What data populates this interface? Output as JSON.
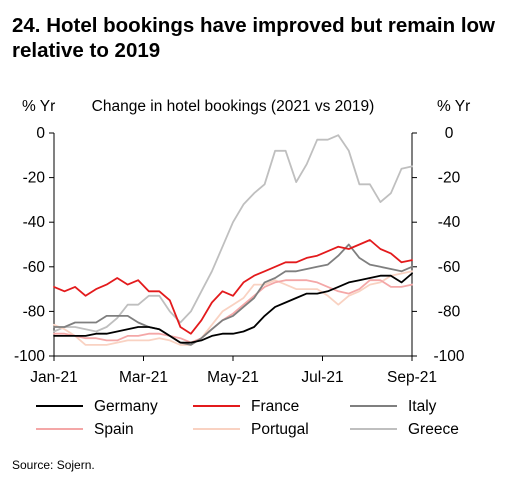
{
  "heading": "24. Hotel bookings have improved but remain low relative to 2019",
  "source": "Source: Sojern.",
  "colors": {
    "Germany": "#000000",
    "France": "#e31a1c",
    "Italy": "#7f7f7f",
    "Spain": "#f4a7a7",
    "Portugal": "#f9d2c2",
    "Greece": "#bfbfbf"
  },
  "chart_data": {
    "type": "line",
    "title": "Change in hotel bookings (2021 vs 2019)",
    "ylabel_left": "% Yr",
    "ylabel_right": "% Yr",
    "ylim": [
      -100,
      0
    ],
    "yticks": [
      0,
      -20,
      -40,
      -60,
      -80,
      -100
    ],
    "xlim": [
      0,
      34
    ],
    "xticks": [
      {
        "x": 0,
        "label": "Jan-21"
      },
      {
        "x": 8.5,
        "label": "Mar-21"
      },
      {
        "x": 17,
        "label": "May-21"
      },
      {
        "x": 25.5,
        "label": "Jul-21"
      },
      {
        "x": 34,
        "label": "Sep-21"
      }
    ],
    "x_unit": "week",
    "legend_position": "bottom",
    "series": [
      {
        "name": "Germany",
        "x": [
          0,
          1,
          2,
          3,
          4,
          5,
          6,
          7,
          8,
          9,
          10,
          11,
          12,
          13,
          14,
          15,
          16,
          17,
          18,
          19,
          20,
          21,
          22,
          23,
          24,
          25,
          26,
          27,
          28,
          29,
          30,
          31,
          32,
          33,
          34
        ],
        "values": [
          -91,
          -91,
          -91,
          -91,
          -90,
          -90,
          -89,
          -88,
          -87,
          -87,
          -88,
          -91,
          -94,
          -94,
          -93,
          -91,
          -90,
          -90,
          -89,
          -87,
          -82,
          -78,
          -76,
          -74,
          -72,
          -72,
          -71,
          -69,
          -67,
          -66,
          -65,
          -64,
          -64,
          -67,
          -63
        ]
      },
      {
        "name": "France",
        "x": [
          0,
          1,
          2,
          3,
          4,
          5,
          6,
          7,
          8,
          9,
          10,
          11,
          12,
          13,
          14,
          15,
          16,
          17,
          18,
          19,
          20,
          21,
          22,
          23,
          24,
          25,
          26,
          27,
          28,
          29,
          30,
          31,
          32,
          33,
          34
        ],
        "values": [
          -69,
          -71,
          -69,
          -73,
          -70,
          -68,
          -65,
          -68,
          -66,
          -71,
          -71,
          -75,
          -87,
          -90,
          -84,
          -76,
          -71,
          -73,
          -67,
          -64,
          -62,
          -60,
          -58,
          -58,
          -56,
          -55,
          -53,
          -51,
          -52,
          -50,
          -48,
          -52,
          -54,
          -58,
          -57
        ]
      },
      {
        "name": "Italy",
        "x": [
          0,
          1,
          2,
          3,
          4,
          5,
          6,
          7,
          8,
          9,
          10,
          11,
          12,
          13,
          14,
          15,
          16,
          17,
          18,
          19,
          20,
          21,
          22,
          23,
          24,
          25,
          26,
          27,
          28,
          29,
          30,
          31,
          32,
          33,
          34
        ],
        "values": [
          -87,
          -87,
          -85,
          -85,
          -85,
          -82,
          -82,
          -82,
          -85,
          -87,
          -88,
          -91,
          -94,
          -95,
          -92,
          -88,
          -84,
          -82,
          -78,
          -74,
          -67,
          -65,
          -62,
          -62,
          -61,
          -60,
          -59,
          -55,
          -50,
          -56,
          -59,
          -60,
          -61,
          -62,
          -60
        ]
      },
      {
        "name": "Spain",
        "x": [
          0,
          1,
          2,
          3,
          4,
          5,
          6,
          7,
          8,
          9,
          10,
          11,
          12,
          13,
          14,
          15,
          16,
          17,
          18,
          19,
          20,
          21,
          22,
          23,
          24,
          25,
          26,
          27,
          28,
          29,
          30,
          31,
          32,
          33,
          34
        ],
        "values": [
          -90,
          -90,
          -91,
          -92,
          -92,
          -93,
          -93,
          -91,
          -91,
          -90,
          -90,
          -91,
          -92,
          -94,
          -92,
          -88,
          -84,
          -81,
          -77,
          -73,
          -69,
          -67,
          -66,
          -66,
          -66,
          -67,
          -69,
          -71,
          -72,
          -70,
          -66,
          -66,
          -69,
          -69,
          -68
        ]
      },
      {
        "name": "Portugal",
        "x": [
          0,
          1,
          2,
          3,
          4,
          5,
          6,
          7,
          8,
          9,
          10,
          11,
          12,
          13,
          14,
          15,
          16,
          17,
          18,
          19,
          20,
          21,
          22,
          23,
          24,
          25,
          26,
          27,
          28,
          29,
          30,
          31,
          32,
          33,
          34
        ],
        "values": [
          -86,
          -88,
          -91,
          -95,
          -95,
          -95,
          -94,
          -93,
          -93,
          -93,
          -92,
          -93,
          -95,
          -95,
          -92,
          -86,
          -80,
          -77,
          -74,
          -68,
          -68,
          -66,
          -68,
          -70,
          -70,
          -70,
          -73,
          -77,
          -73,
          -71,
          -68,
          -67,
          -64,
          -63,
          -62
        ]
      },
      {
        "name": "Greece",
        "x": [
          0,
          1,
          2,
          3,
          4,
          5,
          6,
          7,
          8,
          9,
          10,
          11,
          12,
          13,
          14,
          15,
          16,
          17,
          18,
          19,
          20,
          21,
          22,
          23,
          24,
          25,
          26,
          27,
          28,
          29,
          30,
          31,
          32,
          33,
          34
        ],
        "values": [
          -89,
          -87,
          -87,
          -88,
          -89,
          -87,
          -83,
          -77,
          -77,
          -73,
          -73,
          -80,
          -85,
          -80,
          -71,
          -62,
          -51,
          -40,
          -32,
          -27,
          -23,
          -8,
          -8,
          -22,
          -14,
          -3,
          -3,
          -1,
          -8,
          -23,
          -23,
          -31,
          -27,
          -16,
          -15
        ]
      }
    ]
  }
}
